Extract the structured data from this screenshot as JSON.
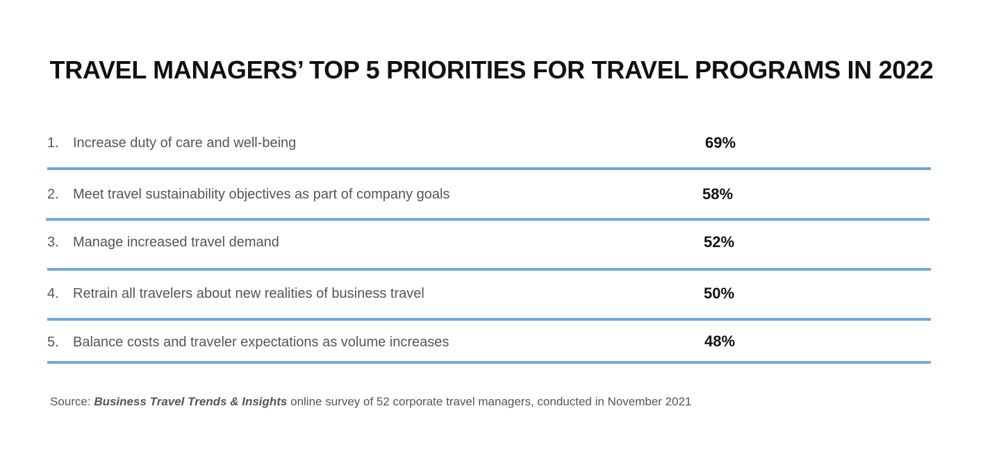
{
  "chart_data": {
    "type": "table",
    "title": "TRAVEL MANAGERS’ TOP 5 PRIORITIES FOR TRAVEL PROGRAMS IN 2022",
    "rows": [
      {
        "rank": "1.",
        "label": "Increase duty of care and well-being",
        "value": "69%"
      },
      {
        "rank": "2.",
        "label": "Meet travel sustainability objectives as part of company goals",
        "value": "58%"
      },
      {
        "rank": "3.",
        "label": "Manage increased travel demand",
        "value": "52%"
      },
      {
        "rank": "4.",
        "label": "Retrain all travelers about new realities of business travel",
        "value": "50%"
      },
      {
        "rank": "5.",
        "label": "Balance costs and traveler expectations as volume increases",
        "value": "48%"
      }
    ],
    "values": [
      69,
      58,
      52,
      50,
      48
    ],
    "source": {
      "prefix": "Source: ",
      "publication": "Business Travel Trends & Insights",
      "suffix": " online survey of 52 corporate travel managers, conducted in  November 2021"
    }
  },
  "colors": {
    "divider": "#74a8d4",
    "text": "#555555",
    "heading": "#111111"
  }
}
